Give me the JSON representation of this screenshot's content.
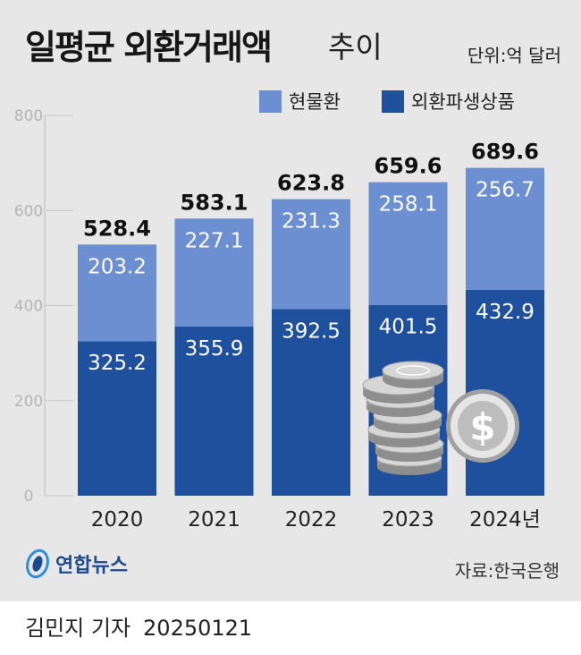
{
  "header": {
    "title_bold": "일평균 외환거래액",
    "title_light": "추이",
    "unit": "단위:억 달러"
  },
  "legend": [
    {
      "label": "현물환",
      "color": "#6b8fd0"
    },
    {
      "label": "외환파생상품",
      "color": "#1f509e"
    }
  ],
  "chart_data": {
    "type": "bar",
    "stacked": true,
    "categories": [
      "2020",
      "2021",
      "2022",
      "2023",
      "2024년"
    ],
    "series": [
      {
        "name": "외환파생상품",
        "values": [
          325.2,
          355.9,
          392.5,
          401.5,
          432.9
        ],
        "color": "#1f509e"
      },
      {
        "name": "현물환",
        "values": [
          203.2,
          227.1,
          231.3,
          258.1,
          256.7
        ],
        "color": "#6b8fd0"
      }
    ],
    "totals": [
      528.4,
      583.1,
      623.8,
      659.6,
      689.6
    ],
    "ylim": [
      0,
      800
    ],
    "yticks": [
      0,
      200,
      400,
      600,
      800
    ],
    "legend_position": "top-right"
  },
  "footer": {
    "logo_text": "연합뉴스",
    "source": "자료:한국은행",
    "reporter": "김민지 기자",
    "date": "20250121"
  }
}
